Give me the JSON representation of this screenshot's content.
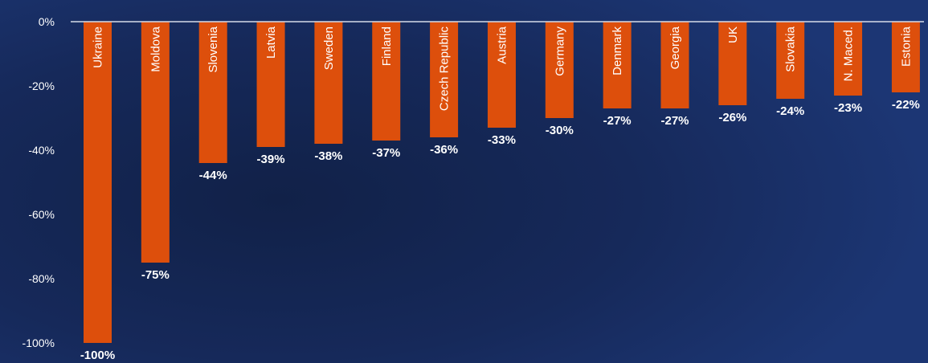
{
  "chart_data": {
    "type": "bar",
    "categories": [
      "Ukraine",
      "Moldova",
      "Slovenia",
      "Latvia",
      "Sweden",
      "Finland",
      "Czech Republic",
      "Austria",
      "Germany",
      "Denmark",
      "Georgia",
      "UK",
      "Slovakia",
      "N. Maced.",
      "Estonia"
    ],
    "values": [
      -100,
      -75,
      -44,
      -39,
      -38,
      -37,
      -36,
      -33,
      -30,
      -27,
      -27,
      -26,
      -24,
      -23,
      -22
    ],
    "data_labels": [
      "-100%",
      "-75%",
      "-44%",
      "-39%",
      "-38%",
      "-37%",
      "-36%",
      "-33%",
      "-30%",
      "-27%",
      "-27%",
      "-26%",
      "-24%",
      "-23%",
      "-22%"
    ],
    "title": "",
    "xlabel": "",
    "ylabel": "",
    "ylim": [
      -100,
      0
    ],
    "yticks": [
      0,
      -20,
      -40,
      -60,
      -80,
      -100
    ],
    "ytick_labels": [
      "0%",
      "-20%",
      "-40%",
      "-60%",
      "-80%",
      "-100%"
    ],
    "grid": false,
    "legend": "none",
    "colors": {
      "bar": "#dd4f0c",
      "background": "#16295a",
      "axis": "#d6dbe8",
      "text": "#ffffff"
    }
  }
}
